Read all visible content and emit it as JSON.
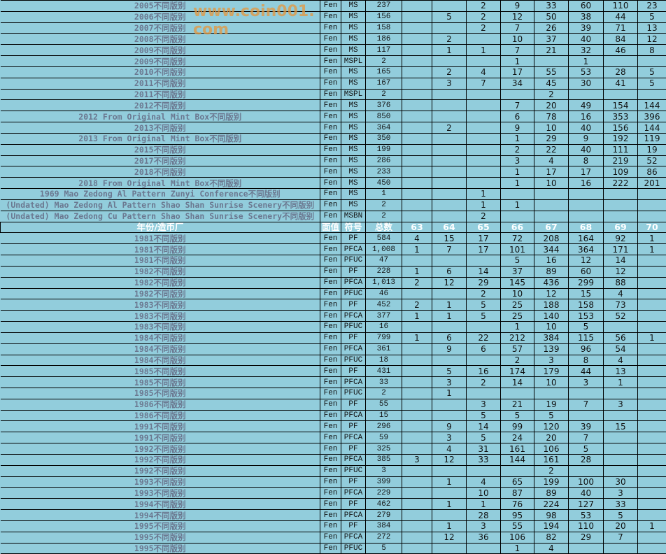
{
  "colors": {
    "background": "#92cddc",
    "label_text": "#6b7890",
    "header_text": "#ffffff",
    "watermark": "#e6963c"
  },
  "header": [
    "年份/造币厂",
    "面值",
    "符号",
    "总数",
    "63",
    "64",
    "65",
    "66",
    "67",
    "68",
    "69",
    "70"
  ],
  "rows_top": [
    [
      "2005不同版别",
      "Fen",
      "MS",
      "237",
      "",
      "",
      "2",
      "9",
      "33",
      "60",
      "110",
      "23"
    ],
    [
      "2006不同版别",
      "Fen",
      "MS",
      "156",
      "",
      "5",
      "2",
      "12",
      "50",
      "38",
      "44",
      "5"
    ],
    [
      "2007不同版别",
      "Fen",
      "MS",
      "158",
      "",
      "",
      "2",
      "7",
      "26",
      "39",
      "71",
      "13"
    ],
    [
      "2008不同版别",
      "Fen",
      "MS",
      "186",
      "",
      "2",
      "",
      "10",
      "37",
      "40",
      "84",
      "12"
    ],
    [
      "2009不同版别",
      "Fen",
      "MS",
      "117",
      "",
      "1",
      "1",
      "7",
      "21",
      "32",
      "46",
      "8"
    ],
    [
      "2009不同版别",
      "Fen",
      "MSPL",
      "2",
      "",
      "",
      "",
      "1",
      "",
      "1",
      "",
      ""
    ],
    [
      "2010不同版别",
      "Fen",
      "MS",
      "165",
      "",
      "2",
      "4",
      "17",
      "55",
      "53",
      "28",
      "5"
    ],
    [
      "2011不同版别",
      "Fen",
      "MS",
      "167",
      "",
      "3",
      "7",
      "34",
      "45",
      "30",
      "41",
      "5"
    ],
    [
      "2011不同版别",
      "Fen",
      "MSPL",
      "2",
      "",
      "",
      "",
      "",
      "2",
      "",
      "",
      ""
    ],
    [
      "2012不同版别",
      "Fen",
      "MS",
      "376",
      "",
      "",
      "",
      "7",
      "20",
      "49",
      "154",
      "144"
    ],
    [
      "2012 From Original Mint Box不同版别",
      "Fen",
      "MS",
      "850",
      "",
      "",
      "",
      "6",
      "78",
      "16",
      "353",
      "396"
    ],
    [
      "2013不同版别",
      "Fen",
      "MS",
      "364",
      "",
      "2",
      "",
      "9",
      "10",
      "40",
      "156",
      "144"
    ],
    [
      "2013 From Original Mint Box不同版别",
      "Fen",
      "MS",
      "350",
      "",
      "",
      "",
      "1",
      "29",
      "9",
      "192",
      "119"
    ],
    [
      "2015不同版别",
      "Fen",
      "MS",
      "199",
      "",
      "",
      "",
      "2",
      "22",
      "40",
      "111",
      "19"
    ],
    [
      "2017不同版别",
      "Fen",
      "MS",
      "286",
      "",
      "",
      "",
      "3",
      "4",
      "8",
      "219",
      "52"
    ],
    [
      "2018不同版别",
      "Fen",
      "MS",
      "233",
      "",
      "",
      "",
      "1",
      "17",
      "17",
      "109",
      "86"
    ],
    [
      "2018 From Original Mint Box不同版别",
      "Fen",
      "MS",
      "450",
      "",
      "",
      "",
      "1",
      "10",
      "16",
      "222",
      "201"
    ],
    [
      "1969 Mao Zedong Al Pattern Zunyi Conference不同版别",
      "Fen",
      "MS",
      "1",
      "",
      "",
      "1",
      "",
      "",
      "",
      "",
      ""
    ],
    [
      "(Undated) Mao Zedong Al Pattern Shao Shan Sunrise Scenery不同版别",
      "Fen",
      "MS",
      "2",
      "",
      "",
      "1",
      "1",
      "",
      "",
      "",
      ""
    ],
    [
      "(Undated) Mao Zedong Cu Pattern Shao Shan Sunrise Scenery不同版别",
      "Fen",
      "MSBN",
      "2",
      "",
      "",
      "2",
      "",
      "",
      "",
      "",
      ""
    ]
  ],
  "rows_bottom": [
    [
      "1981不同版别",
      "Fen",
      "PF",
      "584",
      "4",
      "15",
      "17",
      "72",
      "208",
      "164",
      "92",
      "1"
    ],
    [
      "1981不同版别",
      "Fen",
      "PFCA",
      "1,008",
      "1",
      "7",
      "17",
      "101",
      "344",
      "364",
      "171",
      "1"
    ],
    [
      "1981不同版别",
      "Fen",
      "PFUC",
      "47",
      "",
      "",
      "",
      "5",
      "16",
      "12",
      "14",
      ""
    ],
    [
      "1982不同版别",
      "Fen",
      "PF",
      "228",
      "1",
      "6",
      "14",
      "37",
      "89",
      "60",
      "12",
      ""
    ],
    [
      "1982不同版别",
      "Fen",
      "PFCA",
      "1,013",
      "2",
      "12",
      "29",
      "145",
      "436",
      "299",
      "88",
      ""
    ],
    [
      "1982不同版别",
      "Fen",
      "PFUC",
      "46",
      "",
      "",
      "2",
      "10",
      "12",
      "15",
      "4",
      ""
    ],
    [
      "1983不同版别",
      "Fen",
      "PF",
      "452",
      "2",
      "1",
      "5",
      "25",
      "188",
      "158",
      "73",
      ""
    ],
    [
      "1983不同版别",
      "Fen",
      "PFCA",
      "377",
      "1",
      "1",
      "5",
      "25",
      "140",
      "153",
      "52",
      ""
    ],
    [
      "1983不同版别",
      "Fen",
      "PFUC",
      "16",
      "",
      "",
      "",
      "1",
      "10",
      "5",
      "",
      ""
    ],
    [
      "1984不同版别",
      "Fen",
      "PF",
      "799",
      "1",
      "6",
      "22",
      "212",
      "384",
      "115",
      "56",
      "1"
    ],
    [
      "1984不同版别",
      "Fen",
      "PFCA",
      "361",
      "",
      "9",
      "6",
      "57",
      "139",
      "96",
      "54",
      ""
    ],
    [
      "1984不同版别",
      "Fen",
      "PFUC",
      "18",
      "",
      "",
      "",
      "2",
      "3",
      "8",
      "4",
      ""
    ],
    [
      "1985不同版别",
      "Fen",
      "PF",
      "431",
      "",
      "5",
      "16",
      "174",
      "179",
      "44",
      "13",
      ""
    ],
    [
      "1985不同版别",
      "Fen",
      "PFCA",
      "33",
      "",
      "3",
      "2",
      "14",
      "10",
      "3",
      "1",
      ""
    ],
    [
      "1985不同版别",
      "Fen",
      "PFUC",
      "2",
      "",
      "1",
      "",
      "",
      "",
      "",
      "",
      ""
    ],
    [
      "1986不同版别",
      "Fen",
      "PF",
      "55",
      "",
      "",
      "3",
      "21",
      "19",
      "7",
      "3",
      ""
    ],
    [
      "1986不同版别",
      "Fen",
      "PFCA",
      "15",
      "",
      "",
      "5",
      "5",
      "5",
      "",
      "",
      ""
    ],
    [
      "1991不同版别",
      "Fen",
      "PF",
      "296",
      "",
      "9",
      "14",
      "99",
      "120",
      "39",
      "15",
      ""
    ],
    [
      "1991不同版别",
      "Fen",
      "PFCA",
      "59",
      "",
      "3",
      "5",
      "24",
      "20",
      "7",
      "",
      ""
    ],
    [
      "1992不同版别",
      "Fen",
      "PF",
      "325",
      "",
      "4",
      "31",
      "161",
      "106",
      "5",
      "",
      ""
    ],
    [
      "1992不同版别",
      "Fen",
      "PFCA",
      "385",
      "3",
      "12",
      "33",
      "144",
      "161",
      "28",
      "",
      ""
    ],
    [
      "1992不同版别",
      "Fen",
      "PFUC",
      "3",
      "",
      "",
      "",
      "",
      "2",
      "",
      "",
      ""
    ],
    [
      "1993不同版别",
      "Fen",
      "PF",
      "399",
      "",
      "1",
      "4",
      "65",
      "199",
      "100",
      "30",
      ""
    ],
    [
      "1993不同版别",
      "Fen",
      "PFCA",
      "229",
      "",
      "",
      "10",
      "87",
      "89",
      "40",
      "3",
      ""
    ],
    [
      "1994不同版别",
      "Fen",
      "PF",
      "462",
      "",
      "1",
      "1",
      "76",
      "224",
      "127",
      "33",
      ""
    ],
    [
      "1994不同版别",
      "Fen",
      "PFCA",
      "279",
      "",
      "",
      "28",
      "95",
      "98",
      "53",
      "5",
      ""
    ],
    [
      "1995不同版别",
      "Fen",
      "PF",
      "384",
      "",
      "1",
      "3",
      "55",
      "194",
      "110",
      "20",
      "1"
    ],
    [
      "1995不同版别",
      "Fen",
      "PFCA",
      "272",
      "",
      "12",
      "36",
      "106",
      "82",
      "29",
      "7",
      ""
    ],
    [
      "1995不同版别",
      "Fen",
      "PFUC",
      "5",
      "",
      "",
      "",
      "1",
      "4",
      "",
      "",
      ""
    ]
  ],
  "watermark": "www.coin001.com"
}
